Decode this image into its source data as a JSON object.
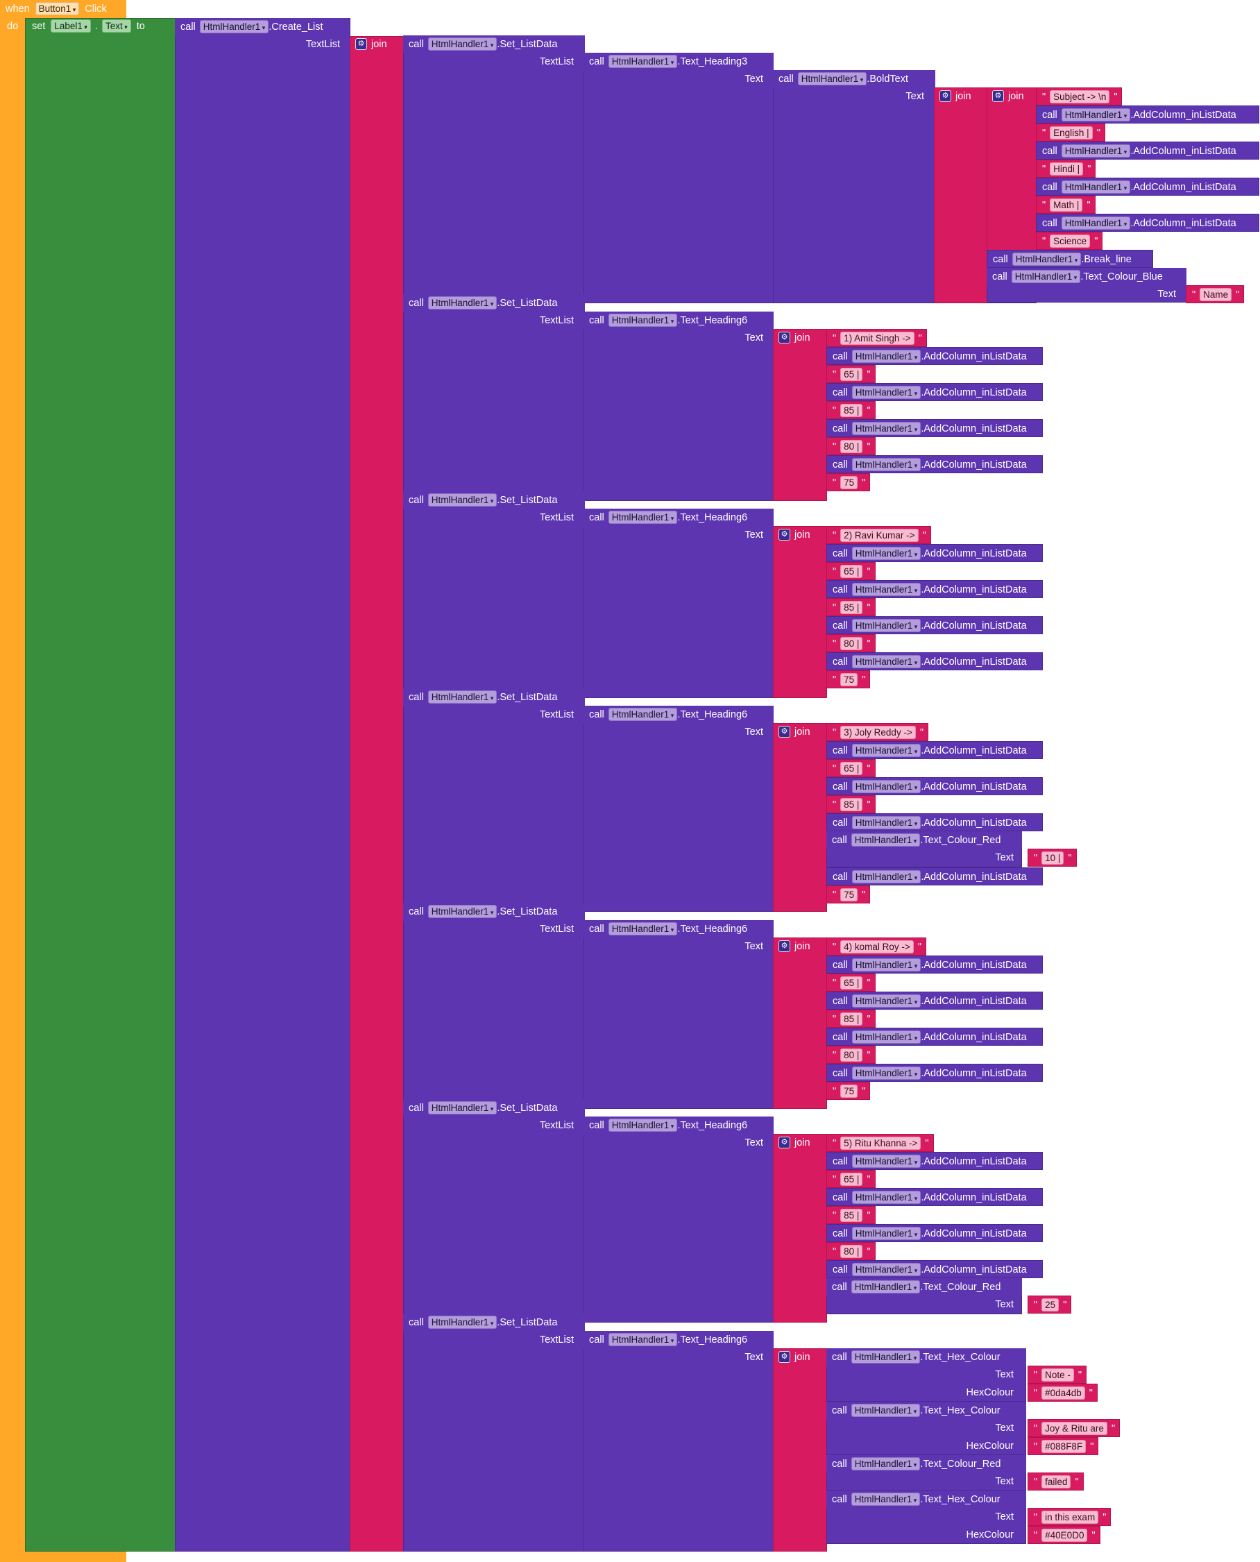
{
  "event": {
    "when": "when",
    "component": "Button1",
    "event": "Click",
    "do": "do"
  },
  "setter": {
    "set": "set",
    "component": "Label1",
    "property": "Text",
    "to": "to"
  },
  "kw": {
    "call": "call",
    "join": "join",
    "textlist": "TextList",
    "text": "Text",
    "hexcolour": "HexColour",
    "quote": "\""
  },
  "component": "HtmlHandler1",
  "methods": {
    "create_list": ".Create_List",
    "set_listdata": ".Set_ListData",
    "heading3": ".Text_Heading3",
    "heading6": ".Text_Heading6",
    "boldtext": ".BoldText",
    "addcol": ".AddColumn_inListData",
    "break_line": ".Break_line",
    "colour_blue": ".Text_Colour_Blue",
    "colour_red": ".Text_Colour_Red",
    "hex_colour": ".Text_Hex_Colour"
  },
  "header": {
    "strings": [
      "Subject -> \\n",
      "English | ",
      "Hindi | ",
      "Math | ",
      "Science "
    ],
    "blue_text": "Name"
  },
  "rows": [
    {
      "name": "1) Amit Singh -> ",
      "marks": [
        "65 | ",
        "85 | ",
        "80 | ",
        "75"
      ]
    },
    {
      "name": "2) Ravi Kumar -> ",
      "marks": [
        "65 | ",
        "85 | ",
        "80 | ",
        "75"
      ]
    },
    {
      "name": "3) Joly Reddy -> ",
      "marks": [
        "65 | ",
        "85 | ",
        "75"
      ],
      "red": "10 | "
    },
    {
      "name": "4) komal Roy -> ",
      "marks": [
        "65 | ",
        "85 | ",
        "80 | ",
        "75"
      ]
    },
    {
      "name": "5) Ritu Khanna -> ",
      "marks": [
        "65 | ",
        "85 | ",
        "80 | "
      ],
      "red": "25 "
    }
  ],
  "note": {
    "note_text": "Note - ",
    "note_hex": "#0da4db",
    "joy_text": "Joy & Ritu are ",
    "joy_hex": "#088F8F",
    "failed_text": " failed ",
    "exam_text": " in this exam",
    "exam_hex": "#40E0D0"
  },
  "colors": {
    "event": "#FFA726",
    "set": "#388E3C",
    "call": "#5E35B1",
    "text": "#D81B60"
  }
}
